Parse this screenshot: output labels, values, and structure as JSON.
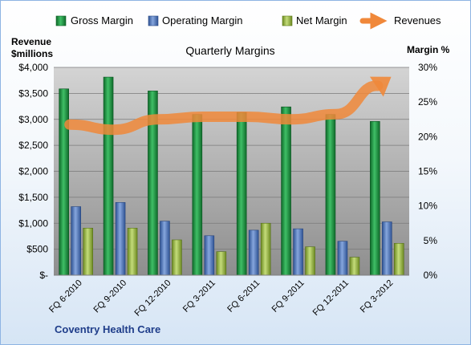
{
  "chart_data": {
    "type": "bar",
    "title": "Quarterly Margins",
    "company": "Coventry Health Care",
    "left_axis_title": [
      "Revenue",
      "$millions"
    ],
    "right_axis_title": "Margin %",
    "categories": [
      "FQ 6-2010",
      "FQ 9-2010",
      "FQ 12-2010",
      "FQ 3-2011",
      "FQ 6-2011",
      "FQ 9-2011",
      "FQ 12-2011",
      "FQ 3-2012"
    ],
    "y_left": {
      "min": 0,
      "max": 4000,
      "ticks": [
        "$-",
        "$500",
        "$1,000",
        "$1,500",
        "$2,000",
        "$2,500",
        "$3,000",
        "$3,500",
        "$4,000"
      ]
    },
    "y_right": {
      "min": 0,
      "max": 30,
      "ticks": [
        "0%",
        "5%",
        "10%",
        "15%",
        "20%",
        "25%",
        "30%"
      ]
    },
    "legend": "top",
    "series": [
      {
        "name": "Gross Margin",
        "axis": "right",
        "kind": "bar",
        "color": "#1e8b3e",
        "values": [
          26.9,
          28.6,
          26.6,
          23.2,
          23.5,
          24.3,
          23.2,
          22.2
        ]
      },
      {
        "name": "Operating Margin",
        "axis": "right",
        "kind": "bar",
        "color": "#4f76b8",
        "values": [
          9.9,
          10.5,
          7.8,
          5.7,
          6.5,
          6.7,
          4.9,
          7.7
        ]
      },
      {
        "name": "Net Margin",
        "axis": "right",
        "kind": "bar",
        "color": "#93b13c",
        "values": [
          6.8,
          6.8,
          5.1,
          3.4,
          7.5,
          4.1,
          2.6,
          4.6
        ]
      },
      {
        "name": "Revenues",
        "axis": "left",
        "kind": "line",
        "color": "#f0883a",
        "values": [
          2900,
          2800,
          3000,
          3050,
          3050,
          3000,
          3100,
          3680
        ]
      }
    ]
  }
}
